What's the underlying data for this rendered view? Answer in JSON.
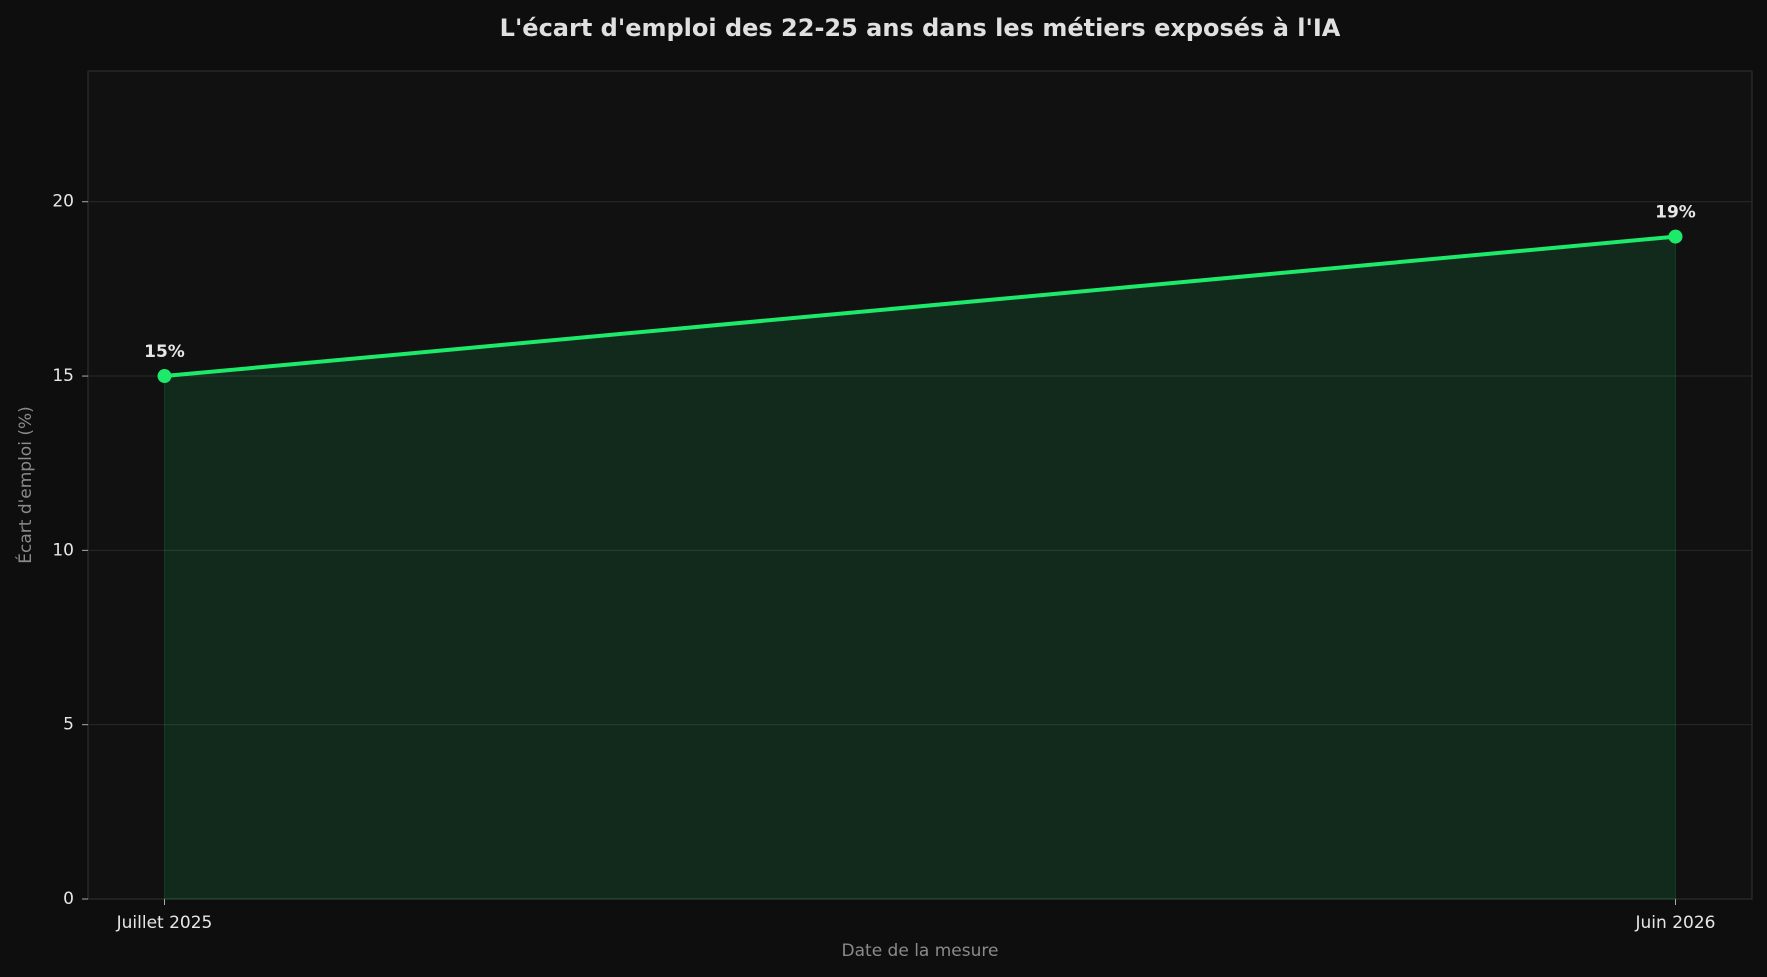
{
  "chart_data": {
    "type": "line",
    "title": "L'écart d'emploi des 22-25 ans dans les métiers exposés à l'IA",
    "x_label": "Date de la mesure",
    "y_label": "Écart d'emploi (%)",
    "categories": [
      "Juillet 2025",
      "Juin 2026"
    ],
    "series": [
      {
        "color": "#1de96b",
        "values": [
          15,
          19
        ],
        "value_labels": [
          "15%",
          "19%"
        ]
      }
    ],
    "fill": true,
    "ylim": [
      0,
      23.75
    ],
    "yticks": [
      0,
      5,
      10,
      15,
      20
    ],
    "grid": true
  }
}
